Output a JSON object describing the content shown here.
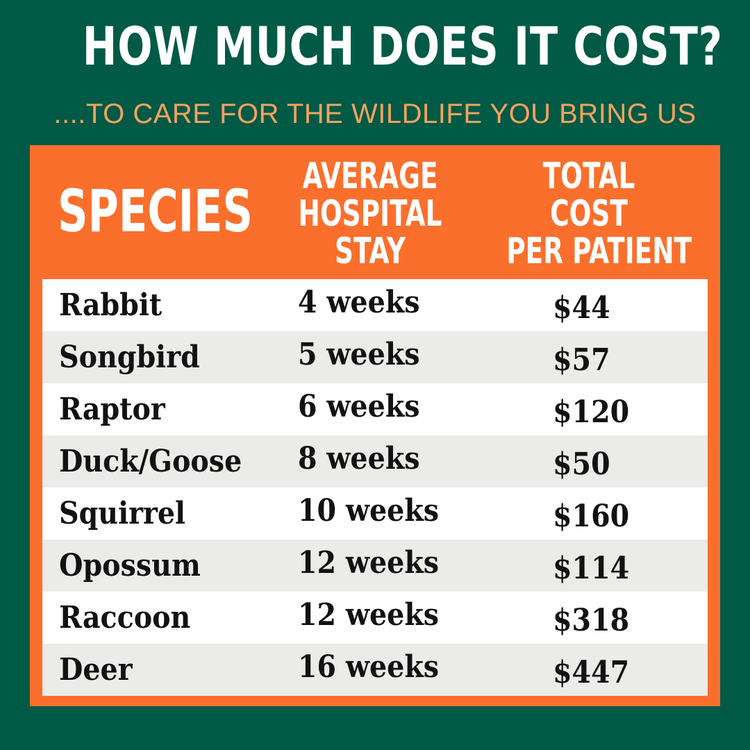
{
  "title": "HOW MUCH DOES IT COST?",
  "subtitle": "....TO CARE FOR THE WILDLIFE YOU BRING US",
  "colors": {
    "background": "#005a46",
    "panel": "#fb6f2c",
    "subtitle": "#f3a35e",
    "row_light": "#ffffff",
    "row_shaded": "#ebebea"
  },
  "table": {
    "headers": {
      "species": "SPECIES",
      "stay_line1": "AVERAGE",
      "stay_line2": "HOSPITAL",
      "stay_line3": "STAY",
      "cost_line1": "TOTAL",
      "cost_line2": "COST",
      "cost_line3": "PER PATIENT"
    },
    "rows": [
      {
        "species": "Rabbit",
        "stay": "4 weeks",
        "cost": "$44"
      },
      {
        "species": "Songbird",
        "stay": "5 weeks",
        "cost": "$57"
      },
      {
        "species": "Raptor",
        "stay": "6 weeks",
        "cost": "$120"
      },
      {
        "species": "Duck/Goose",
        "stay": "8 weeks",
        "cost": "$50"
      },
      {
        "species": "Squirrel",
        "stay": "10 weeks",
        "cost": "$160"
      },
      {
        "species": "Opossum",
        "stay": "12 weeks",
        "cost": "$114"
      },
      {
        "species": "Raccoon",
        "stay": "12 weeks",
        "cost": "$318"
      },
      {
        "species": "Deer",
        "stay": "16 weeks",
        "cost": "$447"
      }
    ]
  }
}
